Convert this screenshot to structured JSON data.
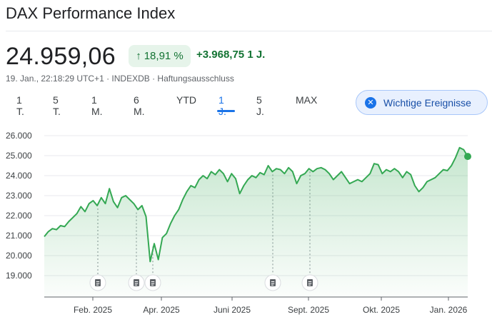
{
  "title": "DAX Performance Index",
  "price": "24.959,06",
  "change_pct": "18,91 %",
  "change_arrow": "↑",
  "change_abs": "+3.968,75",
  "change_period": "1 J.",
  "meta": "19. Jan., 22:18:29 UTC+1 · INDEXDB · Haftungsausschluss",
  "tabs": [
    {
      "label": "1 T."
    },
    {
      "label": "5 T."
    },
    {
      "label": "1 M."
    },
    {
      "label": "6 M."
    },
    {
      "label": "YTD"
    },
    {
      "label": "1 J."
    },
    {
      "label": "5 J."
    },
    {
      "label": "MAX"
    }
  ],
  "active_tab": "1 J.",
  "events_button": {
    "label": "Wichtige Ereignisse",
    "icon": "close-icon"
  },
  "colors": {
    "line": "#34a853",
    "fill": "#e6f4ea",
    "accent": "#1a73e8",
    "positive": "#137333"
  },
  "chart_data": {
    "type": "area",
    "ylim": [
      18000,
      26000
    ],
    "yticks": [
      "19.000",
      "20.000",
      "21.000",
      "22.000",
      "23.000",
      "24.000",
      "25.000",
      "26.000"
    ],
    "xticks": [
      "Feb. 2025",
      "Apr. 2025",
      "Juni 2025",
      "Sept. 2025",
      "Okt. 2025",
      "Jan. 2026"
    ],
    "grid": true,
    "event_markers": 5,
    "series": [
      {
        "values": [
          20950,
          21200,
          21350,
          21300,
          21500,
          21450,
          21700,
          21900,
          22100,
          22450,
          22200,
          22600,
          22750,
          22500,
          22900,
          22600,
          23350,
          22700,
          22400,
          22900,
          23000,
          22800,
          22600,
          22300,
          22500,
          21950,
          19700,
          20600,
          19800,
          20900,
          21100,
          21600,
          22000,
          22300,
          22800,
          23200,
          23500,
          23400,
          23800,
          24000,
          23850,
          24200,
          24050,
          24300,
          24100,
          23700,
          24100,
          23850,
          23100,
          23500,
          23800,
          24000,
          23900,
          24150,
          24050,
          24500,
          24200,
          24350,
          24300,
          24100,
          24400,
          24200,
          23600,
          24000,
          24100,
          24350,
          24200,
          24350,
          24400,
          24300,
          24100,
          23800,
          24000,
          24200,
          23900,
          23600,
          23700,
          23800,
          23700,
          23900,
          24100,
          24600,
          24550,
          24100,
          24300,
          24200,
          24350,
          24200,
          23900,
          24200,
          24050,
          23500,
          23200,
          23400,
          23700,
          23800,
          23900,
          24100,
          24300,
          24250,
          24500,
          24900,
          25400,
          25300,
          24959
        ]
      }
    ]
  }
}
